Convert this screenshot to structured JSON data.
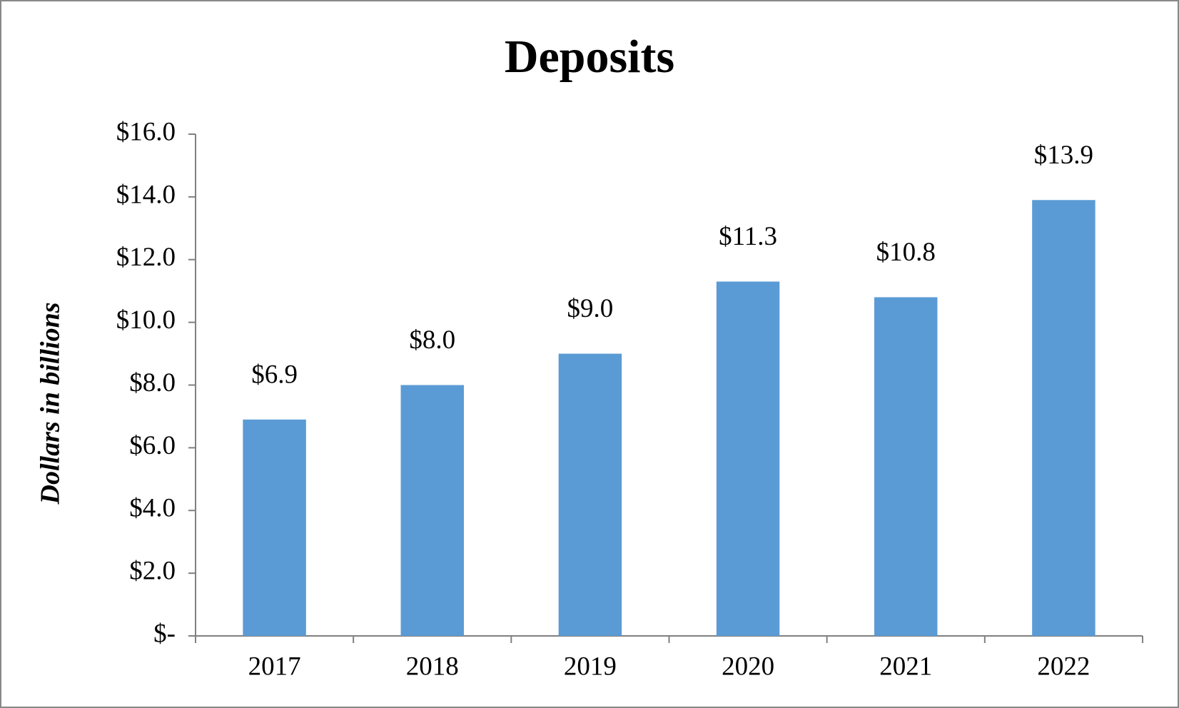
{
  "chart_data": {
    "type": "bar",
    "title": "Deposits",
    "y_label": "Dollars in billions",
    "categories": [
      "2017",
      "2018",
      "2019",
      "2020",
      "2021",
      "2022"
    ],
    "values": [
      6.9,
      8.0,
      9.0,
      11.3,
      10.8,
      13.9
    ],
    "value_labels": [
      "$6.9",
      "$8.0",
      "$9.0",
      "$11.3",
      "$10.8",
      "$13.9"
    ],
    "color": "#5b9bd5",
    "ylim": [
      0,
      16
    ],
    "yticks": [
      {
        "value": 0,
        "label": "$-"
      },
      {
        "value": 2,
        "label": "$2.0"
      },
      {
        "value": 4,
        "label": "$4.0"
      },
      {
        "value": 6,
        "label": "$6.0"
      },
      {
        "value": 8,
        "label": "$8.0"
      },
      {
        "value": 10,
        "label": "$10.0"
      },
      {
        "value": 12,
        "label": "$12.0"
      },
      {
        "value": 14,
        "label": "$14.0"
      },
      {
        "value": 16,
        "label": "$16.0"
      }
    ],
    "grid": false
  }
}
